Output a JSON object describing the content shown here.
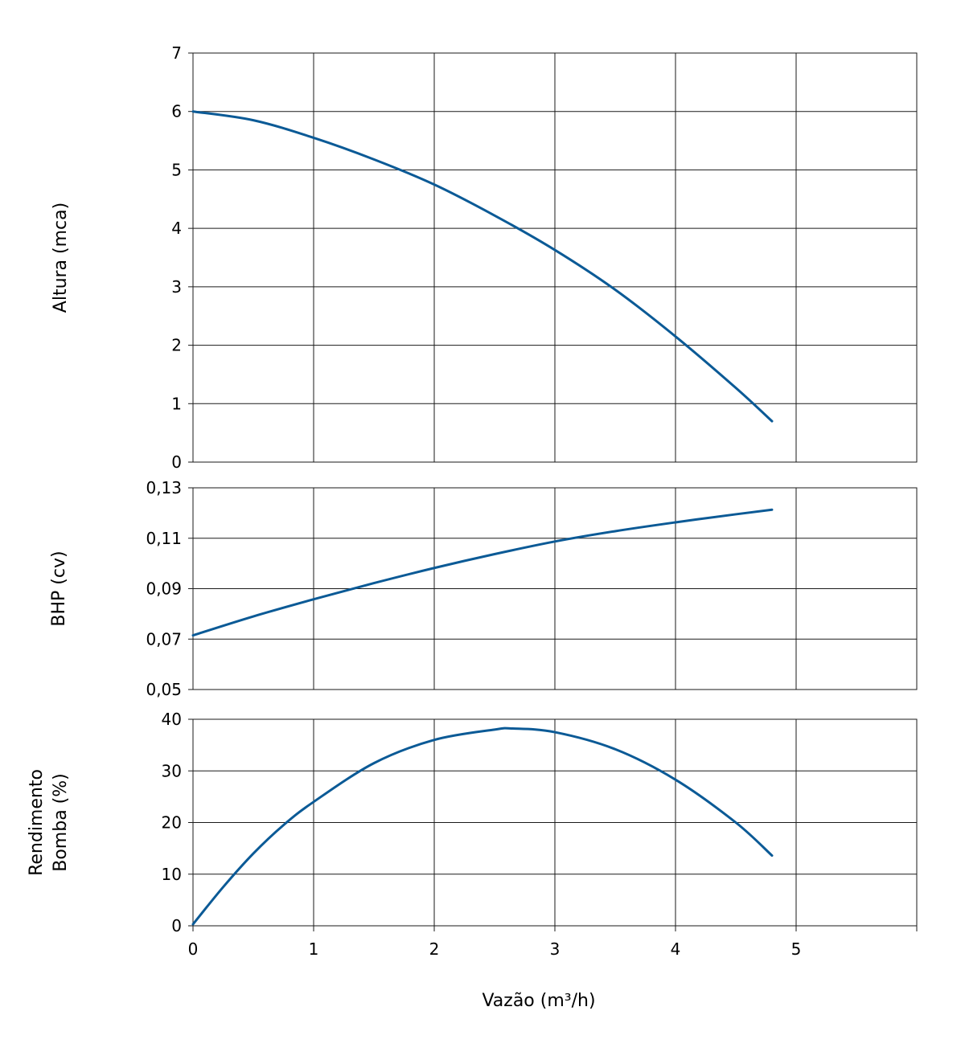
{
  "chart_data": [
    {
      "type": "line",
      "ylabel": "Altura (mca)",
      "xlim": [
        0,
        6
      ],
      "ylim": [
        0,
        7
      ],
      "xticks": [
        0,
        1,
        2,
        3,
        4,
        5,
        6
      ],
      "yticks": [
        "0",
        "1",
        "2",
        "3",
        "4",
        "5",
        "6",
        "7"
      ],
      "grid": true,
      "series": [
        {
          "color": "#0b5a96",
          "x": [
            0,
            0.5,
            1,
            1.5,
            2,
            2.5,
            3,
            3.5,
            4,
            4.5,
            4.8
          ],
          "y": [
            6.0,
            5.85,
            5.55,
            5.18,
            4.75,
            4.22,
            3.63,
            2.95,
            2.15,
            1.27,
            0.7
          ]
        }
      ]
    },
    {
      "type": "line",
      "ylabel": "BHP (cv)",
      "xlim": [
        0,
        6
      ],
      "ylim": [
        0.05,
        0.13
      ],
      "xticks": [
        0,
        1,
        2,
        3,
        4,
        5,
        6
      ],
      "yticks": [
        "0,05",
        "0,07",
        "0,09",
        "0,11",
        "0,13"
      ],
      "grid": true,
      "series": [
        {
          "color": "#0b5a96",
          "x": [
            0,
            0.5,
            1,
            1.5,
            2,
            2.5,
            3,
            3.5,
            4,
            4.5,
            4.8
          ],
          "y": [
            0.0715,
            0.079,
            0.0858,
            0.0922,
            0.0982,
            0.1037,
            0.1087,
            0.1128,
            0.1163,
            0.1195,
            0.1213
          ]
        }
      ]
    },
    {
      "type": "line",
      "ylabel": "Rendimento Bomba (%)",
      "ylabel_lines": [
        "Rendimento",
        "Bomba (%)"
      ],
      "xlabel": "Vazão (m³/h)",
      "xlim": [
        0,
        6
      ],
      "ylim": [
        0,
        40
      ],
      "xticks": [
        0,
        1,
        2,
        3,
        4,
        5,
        6
      ],
      "xticklabels": [
        "0",
        "1",
        "2",
        "3",
        "4",
        "5",
        ""
      ],
      "yticks": [
        "0",
        "10",
        "20",
        "30",
        "40"
      ],
      "grid": true,
      "series": [
        {
          "color": "#0b5a96",
          "x": [
            0,
            0.25,
            0.5,
            0.75,
            1,
            1.5,
            2,
            2.5,
            2.65,
            3,
            3.5,
            4,
            4.5,
            4.8
          ],
          "y": [
            0.3,
            7.5,
            14.0,
            19.5,
            24.0,
            31.5,
            36.0,
            38.0,
            38.2,
            37.5,
            34.2,
            28.3,
            20.0,
            13.6
          ]
        }
      ]
    }
  ]
}
